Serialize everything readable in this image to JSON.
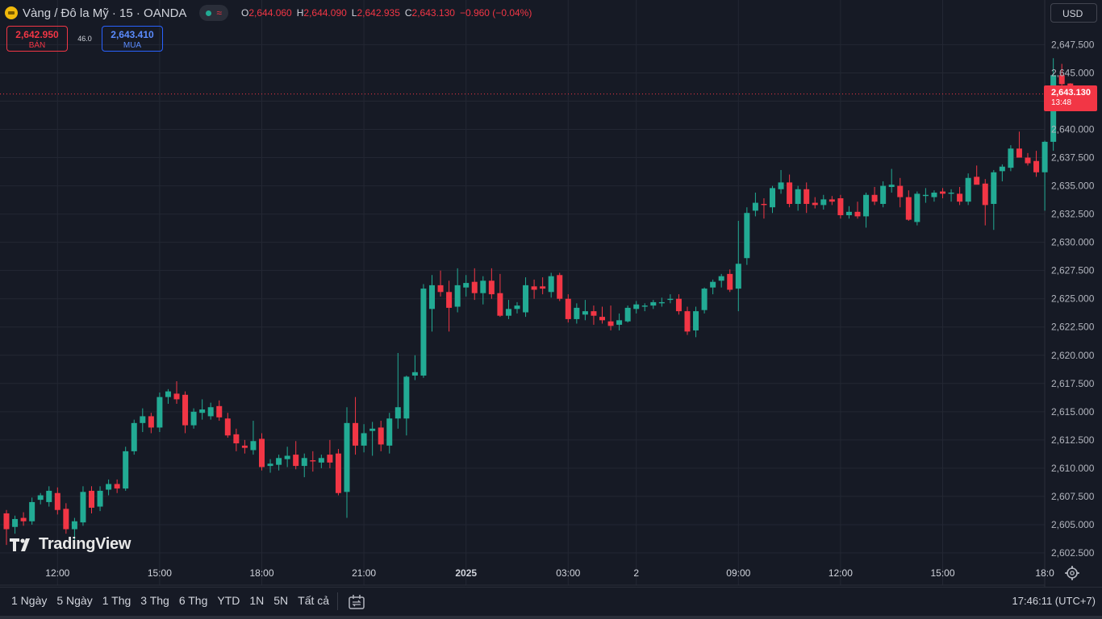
{
  "header": {
    "symbol_title": "Vàng / Đô la Mỹ · 15 · OANDA",
    "ohlc": {
      "o_label": "O",
      "o": "2,644.060",
      "h_label": "H",
      "h": "2,644.090",
      "l_label": "L",
      "l": "2,642.935",
      "c_label": "C",
      "c": "2,643.130",
      "change": "−0.960 (−0.04%)"
    }
  },
  "trade": {
    "sell_price": "2,642.950",
    "sell_label": "BÁN",
    "spread": "46.0",
    "buy_price": "2,643.410",
    "buy_label": "MUA"
  },
  "currency_button": "USD",
  "last_price_tag": {
    "price": "2,643.130",
    "countdown": "13:48"
  },
  "brand": "TradingView",
  "bottom_bar": {
    "periods": [
      "1 Ngày",
      "5 Ngày",
      "1 Thg",
      "3 Thg",
      "6 Thg",
      "YTD",
      "1N",
      "5N",
      "Tất cả"
    ],
    "clock": "17:46:11 (UTC+7)"
  },
  "colors": {
    "up": "#22ab94",
    "down": "#f23645",
    "background": "#161a25",
    "grid": "#232733"
  },
  "chart_data": {
    "type": "candlestick",
    "interval": "15",
    "ylim": [
      2601.5,
      2648.6
    ],
    "y_ticks": [
      "2,602.500",
      "2,605.000",
      "2,607.500",
      "2,610.000",
      "2,612.500",
      "2,615.000",
      "2,617.500",
      "2,620.000",
      "2,622.500",
      "2,625.000",
      "2,627.500",
      "2,630.000",
      "2,632.500",
      "2,635.000",
      "2,637.500",
      "2,640.000",
      "2,642.500",
      "2,645.000",
      "2,647.500"
    ],
    "y_tick_values": [
      2602.5,
      2605,
      2607.5,
      2610,
      2612.5,
      2615,
      2617.5,
      2620,
      2622.5,
      2625,
      2627.5,
      2630,
      2632.5,
      2635,
      2637.5,
      2640,
      2642.5,
      2645,
      2647.5
    ],
    "x_ticks": [
      {
        "label": "12:00",
        "bar": 6
      },
      {
        "label": "15:00",
        "bar": 18
      },
      {
        "label": "18:00",
        "bar": 30
      },
      {
        "label": "21:00",
        "bar": 42
      },
      {
        "label": "2025",
        "bar": 54
      },
      {
        "label": "03:00",
        "bar": 66
      },
      {
        "label": "2",
        "bar": 74
      },
      {
        "label": "09:00",
        "bar": 86
      },
      {
        "label": "12:00",
        "bar": 98
      },
      {
        "label": "15:00",
        "bar": 110
      },
      {
        "label": "18:0",
        "bar": 122
      }
    ],
    "last_price": 2643.13,
    "candles": [
      {
        "o": 2606.0,
        "h": 2606.3,
        "l": 2603.2,
        "c": 2604.6
      },
      {
        "o": 2604.8,
        "h": 2605.8,
        "l": 2604.2,
        "c": 2605.5
      },
      {
        "o": 2605.6,
        "h": 2606.1,
        "l": 2604.9,
        "c": 2605.3
      },
      {
        "o": 2605.3,
        "h": 2607.4,
        "l": 2605.0,
        "c": 2607.0
      },
      {
        "o": 2607.2,
        "h": 2607.8,
        "l": 2606.8,
        "c": 2607.6
      },
      {
        "o": 2607.0,
        "h": 2608.4,
        "l": 2606.6,
        "c": 2608.0
      },
      {
        "o": 2607.8,
        "h": 2608.3,
        "l": 2605.9,
        "c": 2606.3
      },
      {
        "o": 2606.4,
        "h": 2606.9,
        "l": 2604.2,
        "c": 2604.6
      },
      {
        "o": 2604.6,
        "h": 2605.6,
        "l": 2603.5,
        "c": 2605.3
      },
      {
        "o": 2605.2,
        "h": 2608.4,
        "l": 2604.9,
        "c": 2607.9
      },
      {
        "o": 2608.0,
        "h": 2608.4,
        "l": 2606.0,
        "c": 2606.5
      },
      {
        "o": 2606.6,
        "h": 2608.4,
        "l": 2606.2,
        "c": 2608.0
      },
      {
        "o": 2608.1,
        "h": 2609.0,
        "l": 2607.6,
        "c": 2608.6
      },
      {
        "o": 2608.6,
        "h": 2609.0,
        "l": 2607.8,
        "c": 2608.2
      },
      {
        "o": 2608.2,
        "h": 2611.9,
        "l": 2608.0,
        "c": 2611.5
      },
      {
        "o": 2611.5,
        "h": 2614.3,
        "l": 2611.2,
        "c": 2614.0
      },
      {
        "o": 2614.0,
        "h": 2615.3,
        "l": 2613.2,
        "c": 2614.6
      },
      {
        "o": 2614.6,
        "h": 2614.9,
        "l": 2613.1,
        "c": 2613.6
      },
      {
        "o": 2613.6,
        "h": 2616.7,
        "l": 2613.2,
        "c": 2616.3
      },
      {
        "o": 2616.3,
        "h": 2617.0,
        "l": 2615.7,
        "c": 2616.8
      },
      {
        "o": 2616.6,
        "h": 2617.7,
        "l": 2615.7,
        "c": 2616.1
      },
      {
        "o": 2616.5,
        "h": 2616.8,
        "l": 2613.1,
        "c": 2613.8
      },
      {
        "o": 2613.8,
        "h": 2615.3,
        "l": 2613.5,
        "c": 2615.0
      },
      {
        "o": 2614.9,
        "h": 2616.1,
        "l": 2614.3,
        "c": 2615.2
      },
      {
        "o": 2614.6,
        "h": 2615.8,
        "l": 2614.3,
        "c": 2615.4
      },
      {
        "o": 2615.5,
        "h": 2616.0,
        "l": 2614.2,
        "c": 2614.5
      },
      {
        "o": 2614.4,
        "h": 2614.9,
        "l": 2612.7,
        "c": 2612.9
      },
      {
        "o": 2613.0,
        "h": 2613.5,
        "l": 2611.5,
        "c": 2612.2
      },
      {
        "o": 2612.0,
        "h": 2612.5,
        "l": 2611.3,
        "c": 2611.8
      },
      {
        "o": 2611.6,
        "h": 2614.2,
        "l": 2611.2,
        "c": 2612.4
      },
      {
        "o": 2612.6,
        "h": 2613.1,
        "l": 2609.8,
        "c": 2610.1
      },
      {
        "o": 2610.2,
        "h": 2610.8,
        "l": 2609.6,
        "c": 2610.4
      },
      {
        "o": 2610.3,
        "h": 2611.2,
        "l": 2609.8,
        "c": 2610.9
      },
      {
        "o": 2610.8,
        "h": 2611.9,
        "l": 2610.1,
        "c": 2611.1
      },
      {
        "o": 2611.2,
        "h": 2612.4,
        "l": 2609.9,
        "c": 2610.2
      },
      {
        "o": 2610.2,
        "h": 2611.3,
        "l": 2609.2,
        "c": 2610.9
      },
      {
        "o": 2610.7,
        "h": 2611.5,
        "l": 2609.7,
        "c": 2610.6
      },
      {
        "o": 2610.5,
        "h": 2611.2,
        "l": 2610.0,
        "c": 2610.9
      },
      {
        "o": 2611.2,
        "h": 2612.5,
        "l": 2610.0,
        "c": 2610.5
      },
      {
        "o": 2611.3,
        "h": 2611.7,
        "l": 2607.6,
        "c": 2607.8
      },
      {
        "o": 2607.9,
        "h": 2615.4,
        "l": 2605.6,
        "c": 2614.0
      },
      {
        "o": 2614.0,
        "h": 2616.3,
        "l": 2611.2,
        "c": 2612.0
      },
      {
        "o": 2612.0,
        "h": 2613.9,
        "l": 2611.4,
        "c": 2613.1
      },
      {
        "o": 2613.3,
        "h": 2614.1,
        "l": 2611.1,
        "c": 2613.5
      },
      {
        "o": 2613.6,
        "h": 2614.2,
        "l": 2611.5,
        "c": 2612.1
      },
      {
        "o": 2612.0,
        "h": 2614.9,
        "l": 2611.3,
        "c": 2614.4
      },
      {
        "o": 2614.4,
        "h": 2620.2,
        "l": 2613.5,
        "c": 2615.4
      },
      {
        "o": 2614.4,
        "h": 2618.2,
        "l": 2612.9,
        "c": 2618.1
      },
      {
        "o": 2618.2,
        "h": 2620.0,
        "l": 2617.8,
        "c": 2618.5
      },
      {
        "o": 2618.2,
        "h": 2626.3,
        "l": 2618.0,
        "c": 2625.9
      },
      {
        "o": 2624.1,
        "h": 2627.1,
        "l": 2622.1,
        "c": 2626.2
      },
      {
        "o": 2626.2,
        "h": 2627.5,
        "l": 2625.2,
        "c": 2625.6
      },
      {
        "o": 2625.6,
        "h": 2626.6,
        "l": 2622.1,
        "c": 2624.2
      },
      {
        "o": 2624.3,
        "h": 2627.7,
        "l": 2623.8,
        "c": 2626.2
      },
      {
        "o": 2626.0,
        "h": 2627.1,
        "l": 2625.2,
        "c": 2626.4
      },
      {
        "o": 2626.5,
        "h": 2627.7,
        "l": 2624.9,
        "c": 2625.5
      },
      {
        "o": 2625.5,
        "h": 2627.0,
        "l": 2624.5,
        "c": 2626.6
      },
      {
        "o": 2626.6,
        "h": 2627.7,
        "l": 2625.0,
        "c": 2625.4
      },
      {
        "o": 2625.5,
        "h": 2627.2,
        "l": 2623.4,
        "c": 2623.5
      },
      {
        "o": 2623.5,
        "h": 2624.9,
        "l": 2623.2,
        "c": 2624.1
      },
      {
        "o": 2624.1,
        "h": 2624.7,
        "l": 2623.7,
        "c": 2624.4
      },
      {
        "o": 2623.8,
        "h": 2626.9,
        "l": 2623.4,
        "c": 2626.2
      },
      {
        "o": 2626.1,
        "h": 2626.7,
        "l": 2625.0,
        "c": 2625.8
      },
      {
        "o": 2626.1,
        "h": 2626.9,
        "l": 2625.4,
        "c": 2625.9
      },
      {
        "o": 2625.6,
        "h": 2627.3,
        "l": 2625.1,
        "c": 2627.0
      },
      {
        "o": 2627.1,
        "h": 2627.3,
        "l": 2624.8,
        "c": 2625.0
      },
      {
        "o": 2625.0,
        "h": 2625.4,
        "l": 2622.9,
        "c": 2623.2
      },
      {
        "o": 2623.2,
        "h": 2624.6,
        "l": 2622.8,
        "c": 2624.2
      },
      {
        "o": 2623.6,
        "h": 2624.9,
        "l": 2623.1,
        "c": 2623.9
      },
      {
        "o": 2623.9,
        "h": 2624.4,
        "l": 2622.7,
        "c": 2623.5
      },
      {
        "o": 2623.4,
        "h": 2624.3,
        "l": 2622.8,
        "c": 2623.1
      },
      {
        "o": 2623.0,
        "h": 2624.4,
        "l": 2622.2,
        "c": 2622.6
      },
      {
        "o": 2622.7,
        "h": 2623.7,
        "l": 2622.2,
        "c": 2623.1
      },
      {
        "o": 2623.0,
        "h": 2624.4,
        "l": 2622.9,
        "c": 2624.2
      },
      {
        "o": 2624.1,
        "h": 2624.8,
        "l": 2623.7,
        "c": 2624.5
      },
      {
        "o": 2624.3,
        "h": 2624.6,
        "l": 2623.9,
        "c": 2624.4
      },
      {
        "o": 2624.4,
        "h": 2624.9,
        "l": 2624.1,
        "c": 2624.7
      },
      {
        "o": 2624.6,
        "h": 2625.1,
        "l": 2624.3,
        "c": 2624.7
      },
      {
        "o": 2624.9,
        "h": 2625.4,
        "l": 2624.6,
        "c": 2625.0
      },
      {
        "o": 2625.0,
        "h": 2625.4,
        "l": 2623.6,
        "c": 2623.9
      },
      {
        "o": 2623.9,
        "h": 2624.3,
        "l": 2621.8,
        "c": 2622.1
      },
      {
        "o": 2622.2,
        "h": 2624.3,
        "l": 2621.6,
        "c": 2623.9
      },
      {
        "o": 2624.0,
        "h": 2626.0,
        "l": 2623.7,
        "c": 2625.9
      },
      {
        "o": 2626.0,
        "h": 2626.7,
        "l": 2625.4,
        "c": 2626.5
      },
      {
        "o": 2626.6,
        "h": 2627.2,
        "l": 2626.0,
        "c": 2627.0
      },
      {
        "o": 2627.2,
        "h": 2627.6,
        "l": 2625.6,
        "c": 2625.8
      },
      {
        "o": 2625.9,
        "h": 2631.9,
        "l": 2623.9,
        "c": 2628.1
      },
      {
        "o": 2628.6,
        "h": 2633.1,
        "l": 2628.0,
        "c": 2632.6
      },
      {
        "o": 2632.8,
        "h": 2634.4,
        "l": 2632.3,
        "c": 2633.5
      },
      {
        "o": 2633.4,
        "h": 2633.9,
        "l": 2632.1,
        "c": 2633.3
      },
      {
        "o": 2633.1,
        "h": 2635.0,
        "l": 2632.6,
        "c": 2634.8
      },
      {
        "o": 2634.7,
        "h": 2636.4,
        "l": 2634.3,
        "c": 2635.3
      },
      {
        "o": 2635.3,
        "h": 2636.0,
        "l": 2633.1,
        "c": 2633.4
      },
      {
        "o": 2633.4,
        "h": 2635.0,
        "l": 2632.8,
        "c": 2634.7
      },
      {
        "o": 2634.7,
        "h": 2635.3,
        "l": 2632.6,
        "c": 2633.4
      },
      {
        "o": 2633.5,
        "h": 2634.0,
        "l": 2633.0,
        "c": 2633.3
      },
      {
        "o": 2633.3,
        "h": 2634.2,
        "l": 2632.9,
        "c": 2633.8
      },
      {
        "o": 2633.8,
        "h": 2634.1,
        "l": 2633.3,
        "c": 2633.6
      },
      {
        "o": 2633.9,
        "h": 2634.2,
        "l": 2632.1,
        "c": 2632.4
      },
      {
        "o": 2632.4,
        "h": 2633.2,
        "l": 2632.1,
        "c": 2632.7
      },
      {
        "o": 2632.7,
        "h": 2633.6,
        "l": 2632.1,
        "c": 2632.3
      },
      {
        "o": 2632.3,
        "h": 2634.4,
        "l": 2631.3,
        "c": 2634.2
      },
      {
        "o": 2634.2,
        "h": 2634.9,
        "l": 2633.3,
        "c": 2633.6
      },
      {
        "o": 2633.4,
        "h": 2635.4,
        "l": 2633.1,
        "c": 2635.0
      },
      {
        "o": 2634.9,
        "h": 2636.5,
        "l": 2634.4,
        "c": 2635.1
      },
      {
        "o": 2635.0,
        "h": 2635.7,
        "l": 2633.1,
        "c": 2634.0
      },
      {
        "o": 2634.0,
        "h": 2634.6,
        "l": 2631.9,
        "c": 2632.0
      },
      {
        "o": 2631.8,
        "h": 2634.5,
        "l": 2631.5,
        "c": 2634.3
      },
      {
        "o": 2634.1,
        "h": 2634.8,
        "l": 2633.5,
        "c": 2634.2
      },
      {
        "o": 2634.0,
        "h": 2634.6,
        "l": 2633.6,
        "c": 2634.4
      },
      {
        "o": 2634.5,
        "h": 2634.8,
        "l": 2633.9,
        "c": 2634.3
      },
      {
        "o": 2634.3,
        "h": 2634.7,
        "l": 2633.6,
        "c": 2634.4
      },
      {
        "o": 2634.3,
        "h": 2634.9,
        "l": 2633.3,
        "c": 2633.6
      },
      {
        "o": 2633.6,
        "h": 2636.1,
        "l": 2633.3,
        "c": 2635.7
      },
      {
        "o": 2635.8,
        "h": 2636.8,
        "l": 2635.2,
        "c": 2635.1
      },
      {
        "o": 2635.2,
        "h": 2635.6,
        "l": 2631.5,
        "c": 2633.3
      },
      {
        "o": 2633.4,
        "h": 2636.4,
        "l": 2631.1,
        "c": 2636.2
      },
      {
        "o": 2636.3,
        "h": 2636.9,
        "l": 2635.4,
        "c": 2636.7
      },
      {
        "o": 2636.6,
        "h": 2638.6,
        "l": 2636.3,
        "c": 2638.3
      },
      {
        "o": 2638.3,
        "h": 2639.8,
        "l": 2637.6,
        "c": 2637.5
      },
      {
        "o": 2637.5,
        "h": 2637.9,
        "l": 2636.8,
        "c": 2637.0
      },
      {
        "o": 2637.2,
        "h": 2638.1,
        "l": 2635.8,
        "c": 2636.2
      },
      {
        "o": 2636.2,
        "h": 2639.0,
        "l": 2632.8,
        "c": 2638.9
      },
      {
        "o": 2638.9,
        "h": 2646.3,
        "l": 2638.1,
        "c": 2644.8
      },
      {
        "o": 2644.8,
        "h": 2645.8,
        "l": 2643.2,
        "c": 2644.0
      },
      {
        "o": 2644.06,
        "h": 2644.09,
        "l": 2642.935,
        "c": 2643.13
      }
    ]
  }
}
